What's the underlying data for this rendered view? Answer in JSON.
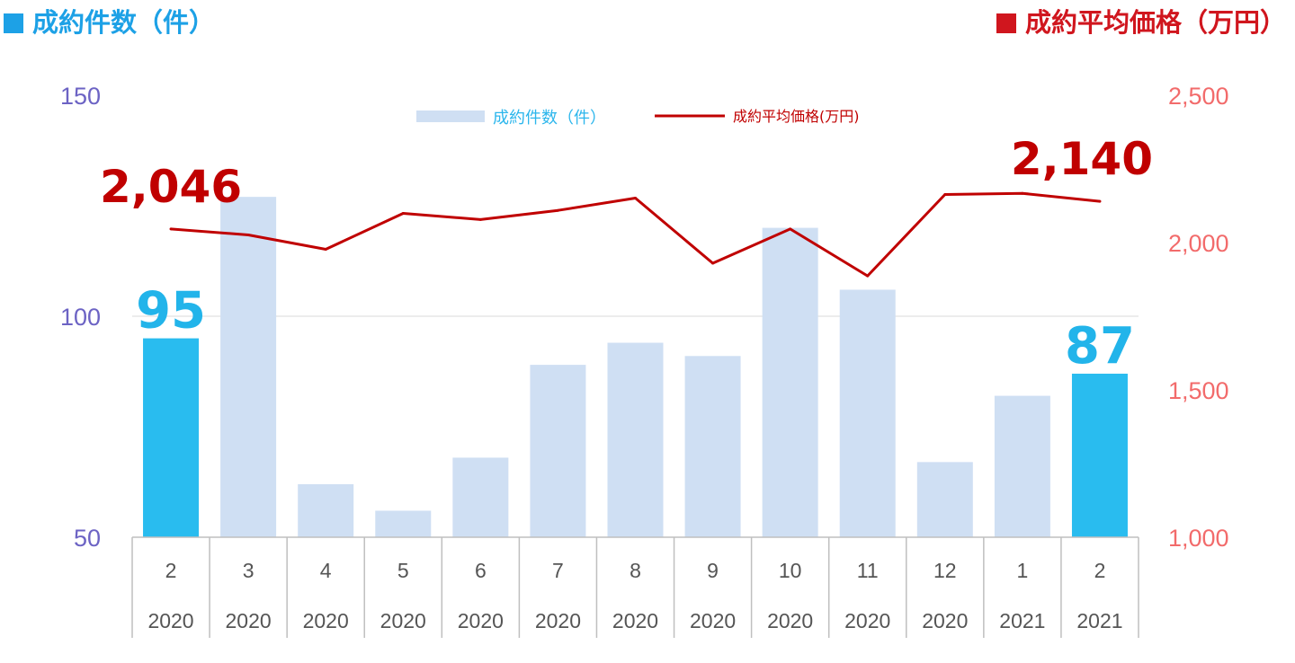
{
  "titles": {
    "left": "成約件数（件）",
    "right": "成約平均価格（万円）",
    "left_marker_color": "#1da1e6",
    "right_marker_color": "#d0161e"
  },
  "chart_data": {
    "type": "bar",
    "categories": [
      {
        "month": "2",
        "year": "2020"
      },
      {
        "month": "3",
        "year": "2020"
      },
      {
        "month": "4",
        "year": "2020"
      },
      {
        "month": "5",
        "year": "2020"
      },
      {
        "month": "6",
        "year": "2020"
      },
      {
        "month": "7",
        "year": "2020"
      },
      {
        "month": "8",
        "year": "2020"
      },
      {
        "month": "9",
        "year": "2020"
      },
      {
        "month": "10",
        "year": "2020"
      },
      {
        "month": "11",
        "year": "2020"
      },
      {
        "month": "12",
        "year": "2020"
      },
      {
        "month": "1",
        "year": "2021"
      },
      {
        "month": "2",
        "year": "2021"
      }
    ],
    "series": [
      {
        "name": "成約件数（件）",
        "type": "bar",
        "axis": "left",
        "values": [
          95,
          127,
          62,
          56,
          68,
          89,
          94,
          91,
          120,
          106,
          67,
          82,
          87
        ],
        "color": "#cfdff3",
        "highlight_color": "#29bcef",
        "highlight_indices": [
          0,
          12
        ]
      },
      {
        "name": "成約平均価格(万円)",
        "type": "line",
        "axis": "right",
        "values": [
          2046,
          2026,
          1977,
          2099,
          2078,
          2109,
          2151,
          1930,
          2046,
          1887,
          2163,
          2167,
          2140
        ],
        "color": "#c00000"
      }
    ],
    "y_left": {
      "min": 50,
      "max": 150,
      "ticks": [
        "50",
        "100",
        "150"
      ]
    },
    "y_right": {
      "min": 1000,
      "max": 2500,
      "ticks": [
        "1,000",
        "1,500",
        "2,000",
        "2,500"
      ]
    },
    "data_labels": {
      "first_bar": "95",
      "last_bar": "87",
      "first_line": "2,046",
      "last_line": "2,140"
    },
    "legend_position": "top-center",
    "grid": "horizontal at 100 only"
  }
}
